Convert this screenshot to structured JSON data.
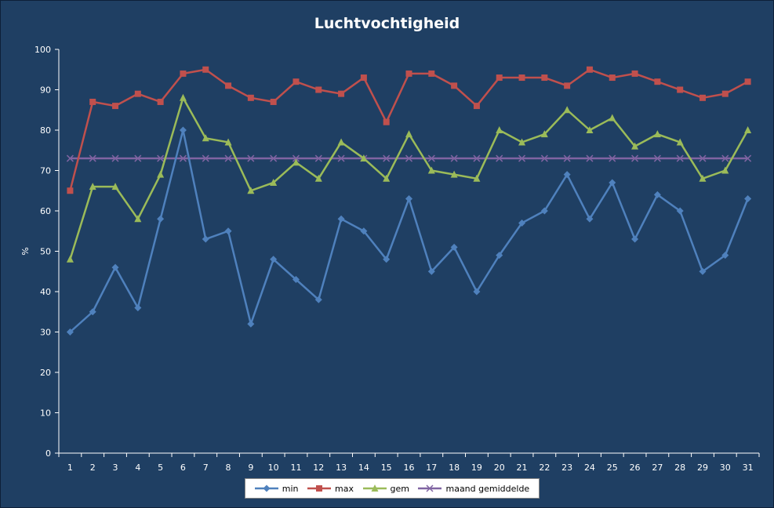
{
  "chart_data": {
    "type": "line",
    "title": "Luchtvochtigheid",
    "xlabel": "",
    "ylabel": "%",
    "ylim": [
      0,
      100
    ],
    "yticks": [
      0,
      10,
      20,
      30,
      40,
      50,
      60,
      70,
      80,
      90,
      100
    ],
    "categories": [
      "1",
      "2",
      "3",
      "4",
      "5",
      "6",
      "7",
      "8",
      "9",
      "10",
      "11",
      "12",
      "13",
      "14",
      "15",
      "16",
      "17",
      "18",
      "19",
      "20",
      "21",
      "22",
      "23",
      "24",
      "25",
      "26",
      "27",
      "28",
      "29",
      "30",
      "31"
    ],
    "grid": false,
    "legend_position": "bottom",
    "series": [
      {
        "name": "min",
        "color": "#4f81bd",
        "marker": "diamond",
        "values": [
          30,
          35,
          46,
          36,
          58,
          80,
          53,
          55,
          32,
          48,
          43,
          38,
          58,
          55,
          48,
          63,
          45,
          51,
          40,
          49,
          57,
          60,
          69,
          58,
          67,
          53,
          64,
          60,
          45,
          49,
          63
        ]
      },
      {
        "name": "max",
        "color": "#c0504d",
        "marker": "square",
        "values": [
          65,
          87,
          86,
          89,
          87,
          94,
          95,
          91,
          88,
          87,
          92,
          90,
          89,
          93,
          82,
          94,
          94,
          91,
          86,
          93,
          93,
          93,
          91,
          95,
          93,
          94,
          92,
          90,
          88,
          89,
          92
        ]
      },
      {
        "name": "gem",
        "color": "#9bbb59",
        "marker": "triangle",
        "values": [
          48,
          66,
          66,
          58,
          69,
          88,
          78,
          77,
          65,
          67,
          72,
          68,
          77,
          73,
          68,
          79,
          70,
          69,
          68,
          80,
          77,
          79,
          85,
          80,
          83,
          76,
          79,
          77,
          68,
          70,
          80
        ]
      },
      {
        "name": "maand gemiddelde",
        "color": "#8064a2",
        "marker": "x",
        "values": [
          73,
          73,
          73,
          73,
          73,
          73,
          73,
          73,
          73,
          73,
          73,
          73,
          73,
          73,
          73,
          73,
          73,
          73,
          73,
          73,
          73,
          73,
          73,
          73,
          73,
          73,
          73,
          73,
          73,
          73,
          73
        ]
      }
    ]
  }
}
